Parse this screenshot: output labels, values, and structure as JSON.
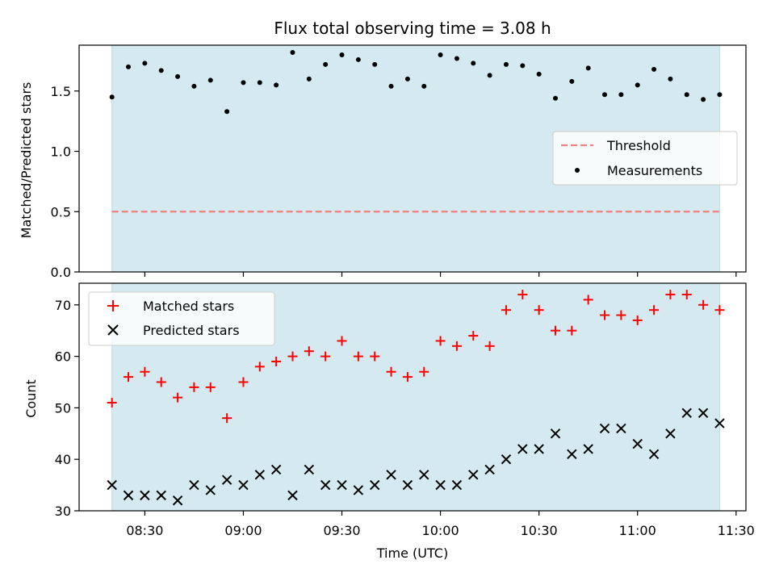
{
  "chart_data": [
    {
      "type": "scatter",
      "title": "Flux total observing time = 3.08 h",
      "xlabel": "",
      "ylabel": "Matched/Predicted stars",
      "ylim": [
        0.0,
        1.88
      ],
      "yticks": [
        0.0,
        0.5,
        1.0,
        1.5
      ],
      "ytick_labels": [
        "0.0",
        "0.5",
        "1.0",
        "1.5"
      ],
      "shaded_region": {
        "x_start": 500,
        "x_end": 685,
        "color": "#d4eaf0"
      },
      "threshold": {
        "name": "Threshold",
        "value": 0.5,
        "color": "#f08080"
      },
      "series": [
        {
          "name": "Measurements",
          "marker": "dot",
          "color": "#000000",
          "x": [
            500,
            505,
            510,
            515,
            520,
            525,
            530,
            535,
            540,
            545,
            550,
            555,
            560,
            565,
            570,
            575,
            580,
            585,
            590,
            595,
            600,
            605,
            610,
            615,
            620,
            625,
            630,
            635,
            640,
            645,
            650,
            655,
            660,
            665,
            670,
            675,
            680,
            685
          ],
          "y": [
            1.45,
            1.7,
            1.73,
            1.67,
            1.62,
            1.54,
            1.59,
            1.33,
            1.57,
            1.57,
            1.55,
            1.82,
            1.6,
            1.72,
            1.8,
            1.76,
            1.72,
            1.54,
            1.6,
            1.54,
            1.8,
            1.77,
            1.73,
            1.63,
            1.72,
            1.71,
            1.64,
            1.44,
            1.58,
            1.69,
            1.47,
            1.47,
            1.55,
            1.68,
            1.6,
            1.47,
            1.43,
            1.47
          ]
        }
      ],
      "legend": {
        "placement": "center-right",
        "entries": [
          "Threshold",
          "Measurements"
        ]
      }
    },
    {
      "type": "scatter",
      "title": "",
      "xlabel": "Time (UTC)",
      "ylabel": "Count",
      "ylim": [
        30,
        74.2
      ],
      "yticks": [
        30,
        40,
        50,
        60,
        70
      ],
      "ytick_labels": [
        "30",
        "40",
        "50",
        "60",
        "70"
      ],
      "xlim": [
        490,
        693
      ],
      "xticks": [
        510,
        540,
        570,
        600,
        630,
        660,
        690
      ],
      "xtick_labels": [
        "08:30",
        "09:00",
        "09:30",
        "10:00",
        "10:30",
        "11:00",
        "11:30"
      ],
      "x_unit": "minutes since 00:00 UTC",
      "shaded_region": {
        "x_start": 500,
        "x_end": 685,
        "color": "#d4eaf0"
      },
      "series": [
        {
          "name": "Matched stars",
          "marker": "plus",
          "color": "#ff0000",
          "x": [
            500,
            505,
            510,
            515,
            520,
            525,
            530,
            535,
            540,
            545,
            550,
            555,
            560,
            565,
            570,
            575,
            580,
            585,
            590,
            595,
            600,
            605,
            610,
            615,
            620,
            625,
            630,
            635,
            640,
            645,
            650,
            655,
            660,
            665,
            670,
            675,
            680,
            685
          ],
          "y": [
            51,
            56,
            57,
            55,
            52,
            54,
            54,
            48,
            55,
            58,
            59,
            60,
            61,
            60,
            63,
            60,
            60,
            57,
            56,
            57,
            63,
            62,
            64,
            62,
            69,
            72,
            69,
            65,
            65,
            71,
            68,
            68,
            67,
            69,
            72,
            72,
            70,
            69
          ]
        },
        {
          "name": "Predicted stars",
          "marker": "x",
          "color": "#000000",
          "x": [
            500,
            505,
            510,
            515,
            520,
            525,
            530,
            535,
            540,
            545,
            550,
            555,
            560,
            565,
            570,
            575,
            580,
            585,
            590,
            595,
            600,
            605,
            610,
            615,
            620,
            625,
            630,
            635,
            640,
            645,
            650,
            655,
            660,
            665,
            670,
            675,
            680,
            685
          ],
          "y": [
            35,
            33,
            33,
            33,
            32,
            35,
            34,
            36,
            35,
            37,
            38,
            33,
            38,
            35,
            35,
            34,
            35,
            37,
            35,
            37,
            35,
            35,
            37,
            38,
            40,
            42,
            42,
            45,
            41,
            42,
            46,
            46,
            43,
            41,
            45,
            49,
            49,
            47
          ]
        }
      ],
      "legend": {
        "placement": "top-left",
        "entries": [
          "Matched stars",
          "Predicted stars"
        ]
      }
    }
  ]
}
